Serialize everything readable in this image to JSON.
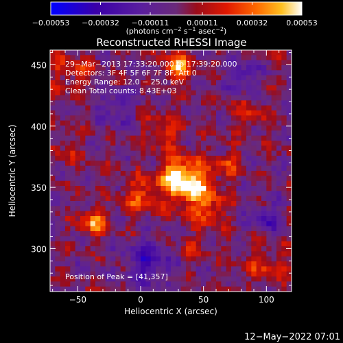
{
  "chart_data": {
    "type": "heatmap",
    "title": "Reconstructed RHESSI Image",
    "xlabel": "Heliocentric X (arcsec)",
    "ylabel": "Heliocentric Y (arcsec)",
    "xlim": [
      -72,
      120
    ],
    "ylim": [
      265,
      462
    ],
    "x_ticks": [
      -50,
      0,
      50,
      100
    ],
    "x_tick_labels": [
      "−50",
      "0",
      "50",
      "100"
    ],
    "y_ticks": [
      300,
      350,
      400,
      450
    ],
    "y_tick_labels": [
      "300",
      "350",
      "400",
      "450"
    ],
    "colorbar": {
      "min": -0.00053,
      "max": 0.00053,
      "ticks": [
        -0.00053,
        -0.00032,
        -0.00011,
        0.00011,
        0.00032,
        0.00053
      ],
      "tick_labels": [
        "−0.00053",
        "−0.00032",
        "−0.00011",
        "0.00011",
        "0.00032",
        "0.00053"
      ],
      "units_prefix": "(photons cm",
      "units_exp1": "−2",
      "units_mid1": " s",
      "units_exp2": "−1",
      "units_mid2": " asec",
      "units_exp3": "−2",
      "units_suffix": ")"
    },
    "annotations": [
      "29−Mar−2013 17:33:20.000 to 17:39:20.000",
      "Detectors: 3F 4F 5F 6F 7F 8F, Att 0",
      "Energy Range: 12.0 − 25.0 keV",
      "Clean     Total counts: 8.43E+03"
    ],
    "peak_label": "Position of Peak = [41,357]",
    "peak": {
      "x": 41,
      "y": 357,
      "value": 0.00053
    },
    "sources": [
      {
        "x": 40,
        "y": 352,
        "sigma": 13,
        "amp": 0.0005
      },
      {
        "x": 25,
        "y": 360,
        "sigma": 9,
        "amp": 0.0003
      },
      {
        "x": 30,
        "y": 448,
        "sigma": 8,
        "amp": 0.0004
      },
      {
        "x": -38,
        "y": 322,
        "sigma": 7,
        "amp": 0.00038
      },
      {
        "x": 55,
        "y": 330,
        "sigma": 9,
        "amp": 0.00022
      },
      {
        "x": 0,
        "y": 343,
        "sigma": 10,
        "amp": 0.00026
      },
      {
        "x": 18,
        "y": 395,
        "sigma": 10,
        "amp": 0.0002
      },
      {
        "x": -55,
        "y": 445,
        "sigma": 12,
        "amp": 0.00018
      },
      {
        "x": 85,
        "y": 410,
        "sigma": 10,
        "amp": 0.00015
      },
      {
        "x": 100,
        "y": 285,
        "sigma": 12,
        "amp": 0.00018
      },
      {
        "x": 70,
        "y": 370,
        "sigma": 8,
        "amp": 0.00018
      },
      {
        "x": 42,
        "y": 300,
        "sigma": 8,
        "amp": 0.00014
      },
      {
        "x": -60,
        "y": 380,
        "sigma": 9,
        "amp": 0.00012
      },
      {
        "x": 5,
        "y": 290,
        "sigma": 12,
        "amp": -0.0003
      },
      {
        "x": 80,
        "y": 440,
        "sigma": 9,
        "amp": -0.00022
      },
      {
        "x": -20,
        "y": 415,
        "sigma": 10,
        "amp": -0.00018
      },
      {
        "x": 100,
        "y": 325,
        "sigma": 8,
        "amp": -0.00025
      }
    ],
    "colormap": [
      [
        0.0,
        "#0000ff"
      ],
      [
        0.18,
        "#3a00a8"
      ],
      [
        0.36,
        "#5a1e9e"
      ],
      [
        0.5,
        "#6a2a7a"
      ],
      [
        0.58,
        "#9a0c1a"
      ],
      [
        0.7,
        "#e01800"
      ],
      [
        0.82,
        "#ff6a00"
      ],
      [
        0.92,
        "#ffc020"
      ],
      [
        1.0,
        "#ffffff"
      ]
    ]
  },
  "footer": {
    "timestamp": "12−May−2022 07:01"
  }
}
